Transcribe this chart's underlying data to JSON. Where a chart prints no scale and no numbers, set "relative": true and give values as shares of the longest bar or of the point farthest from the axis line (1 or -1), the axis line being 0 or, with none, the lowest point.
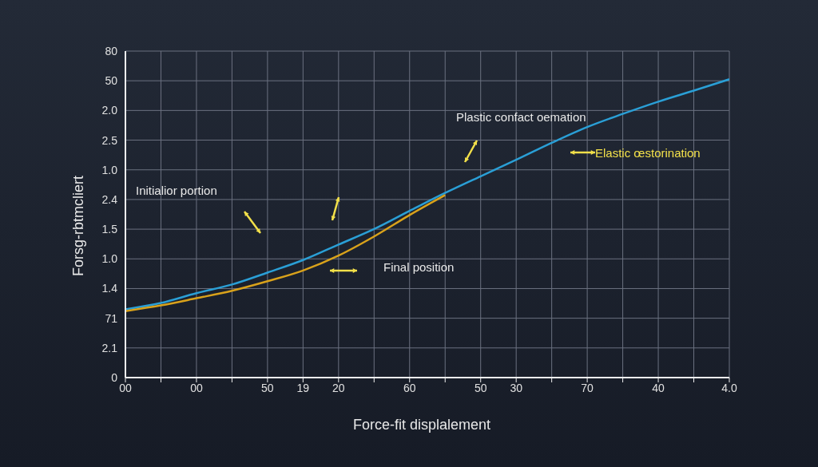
{
  "chart_data": {
    "type": "line",
    "xlabel": "Force-fit displalement",
    "ylabel": "Forsg-rbtmcliert",
    "categories": [
      "00",
      null,
      "00",
      null,
      "50",
      "19",
      "20",
      null,
      "60",
      null,
      "50",
      "30",
      null,
      "70",
      null,
      "40",
      null,
      "4.0"
    ],
    "relative": true,
    "series": [
      {
        "color": "#2a9fd6",
        "values": [
          0.229,
          0.25,
          0.283,
          0.312,
          0.352,
          0.394,
          0.446,
          0.498,
          0.559,
          0.619,
          0.675,
          0.73,
          0.787,
          0.84,
          0.884,
          0.925,
          0.962,
          1
        ]
      },
      {
        "color": "#d9a21b",
        "values": [
          0.223,
          0.242,
          0.266,
          0.291,
          0.323,
          0.359,
          0.409,
          0.473,
          0.545,
          0.612,
          null,
          null,
          null,
          null,
          null,
          null,
          null,
          null
        ]
      }
    ],
    "annotations": [
      "0",
      "2.1",
      "71",
      "1.4",
      "1.0",
      "1.5",
      "2.4",
      "1.0",
      "2.5",
      "2.0",
      "50",
      "80",
      "Plastic confact oemation",
      "Elastic œstorination",
      "Initialior portion",
      "Final position"
    ],
    "grid": true,
    "marker": "none",
    "line_style": "solid"
  }
}
